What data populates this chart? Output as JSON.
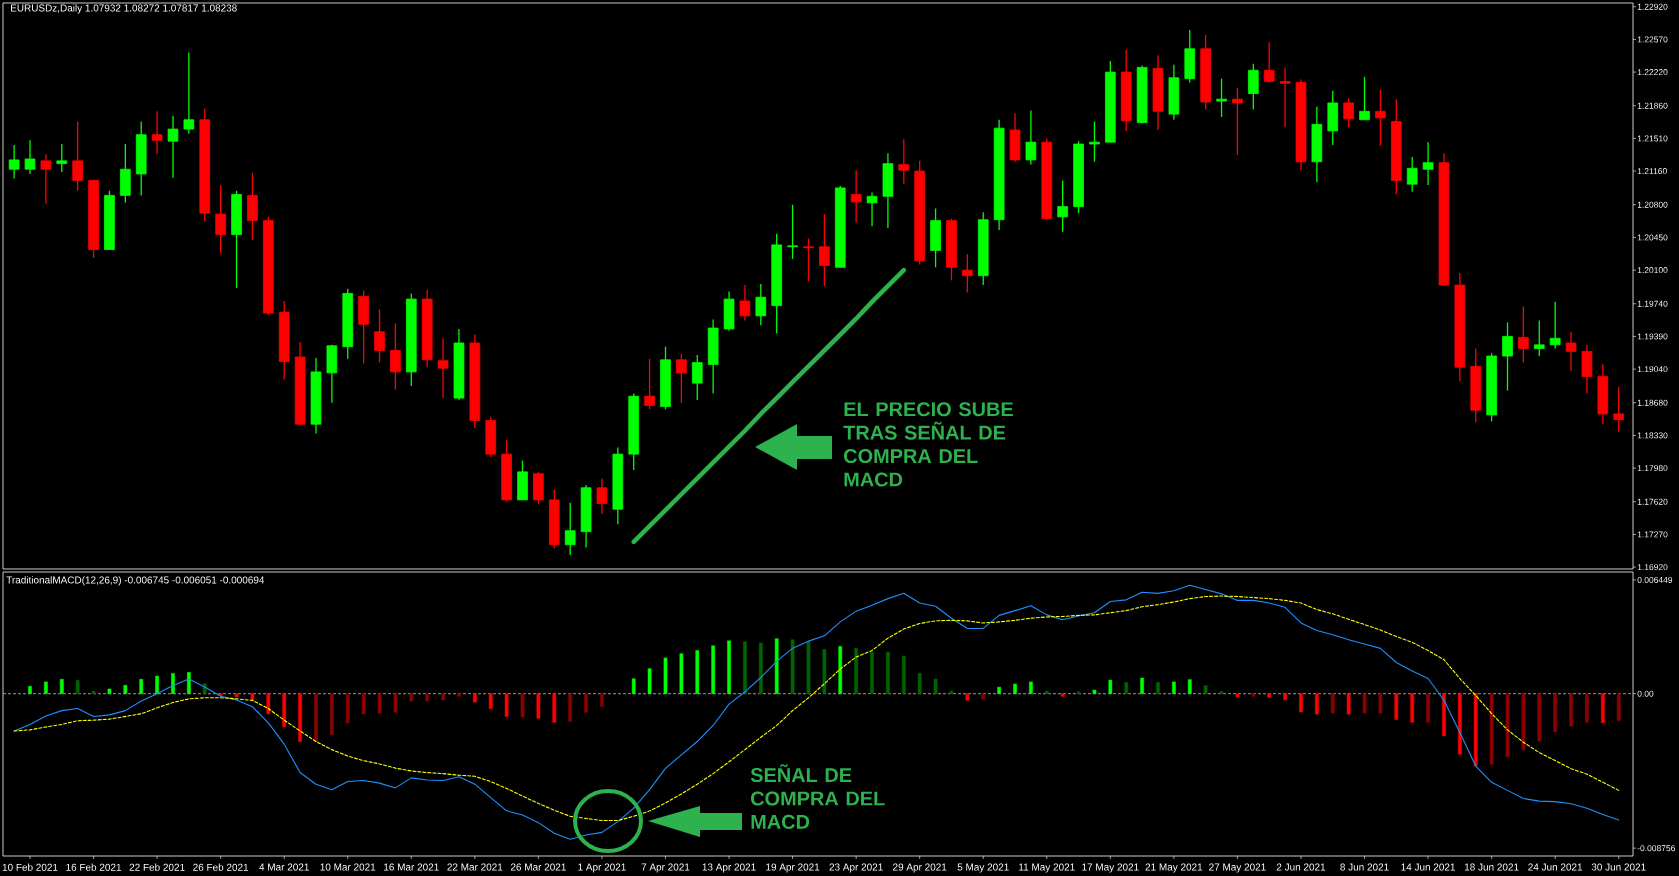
{
  "chart_data": [
    {
      "type": "candlestick",
      "title": "EURUSDz,Daily  1.07932 1.08272 1.07817 1.08238",
      "categories": [
        null,
        null,
        null,
        null,
        null,
        null,
        null,
        null,
        null,
        null,
        null,
        null,
        null,
        null,
        null,
        null,
        null,
        null,
        null,
        null,
        null,
        null,
        null,
        null,
        null,
        null,
        null,
        null,
        null,
        null,
        null,
        null,
        null,
        null,
        null,
        null,
        null,
        null,
        null,
        null,
        null,
        null,
        null,
        null,
        null,
        null,
        null,
        null,
        null,
        null,
        null,
        null,
        null,
        null,
        null,
        null,
        null,
        null,
        null,
        null,
        null,
        null,
        null,
        null,
        null,
        null,
        null,
        null,
        null,
        null,
        null,
        null,
        null,
        null,
        null,
        null,
        null,
        null,
        null,
        null,
        null,
        null,
        null,
        null,
        null,
        null,
        null,
        null,
        null,
        null,
        null,
        null,
        null,
        null,
        null,
        null,
        null,
        null,
        null,
        null,
        null,
        null
      ],
      "ohlc": [
        [
          1.2118,
          1.2144,
          1.2108,
          1.2128
        ],
        [
          1.2118,
          1.2149,
          1.2113,
          1.2129
        ],
        [
          1.2127,
          1.2134,
          1.2081,
          1.2118
        ],
        [
          1.2124,
          1.2145,
          1.2115,
          1.2127
        ],
        [
          1.2127,
          1.2169,
          1.2095,
          1.2106
        ],
        [
          1.2106,
          1.2107,
          1.2023,
          1.2032
        ],
        [
          1.2032,
          1.2095,
          1.2032,
          1.209
        ],
        [
          1.209,
          1.2145,
          1.2082,
          1.2118
        ],
        [
          1.2113,
          1.2169,
          1.209,
          1.2155
        ],
        [
          1.2155,
          1.218,
          1.2134,
          1.2149
        ],
        [
          1.2148,
          1.2175,
          1.2109,
          1.2161
        ],
        [
          1.2161,
          1.2243,
          1.2156,
          1.2171
        ],
        [
          1.2171,
          1.2183,
          1.2062,
          1.2071
        ],
        [
          1.207,
          1.2101,
          1.2028,
          1.2048
        ],
        [
          1.2048,
          1.2095,
          1.1991,
          1.2091
        ],
        [
          1.209,
          1.2114,
          1.2042,
          1.2063
        ],
        [
          1.2063,
          1.2067,
          1.1962,
          1.1964
        ],
        [
          1.1965,
          1.1977,
          1.1893,
          1.1912
        ],
        [
          1.1917,
          1.1933,
          1.1844,
          1.1845
        ],
        [
          1.1845,
          1.1916,
          1.1835,
          1.1901
        ],
        [
          1.19,
          1.193,
          1.1868,
          1.1929
        ],
        [
          1.1928,
          1.199,
          1.1915,
          1.1985
        ],
        [
          1.1982,
          1.1988,
          1.191,
          1.1952
        ],
        [
          1.1944,
          1.1968,
          1.1911,
          1.1924
        ],
        [
          1.1924,
          1.1953,
          1.1882,
          1.1901
        ],
        [
          1.1901,
          1.1985,
          1.1886,
          1.1979
        ],
        [
          1.1979,
          1.1989,
          1.1906,
          1.1914
        ],
        [
          1.1913,
          1.1937,
          1.1873,
          1.1905
        ],
        [
          1.1873,
          1.1947,
          1.1871,
          1.1932
        ],
        [
          1.1932,
          1.1941,
          1.1841,
          1.1849
        ],
        [
          1.1849,
          1.1853,
          1.181,
          1.1813
        ],
        [
          1.1813,
          1.1828,
          1.1762,
          1.1764
        ],
        [
          1.1764,
          1.1806,
          1.1764,
          1.1794
        ],
        [
          1.1792,
          1.1794,
          1.176,
          1.1764
        ],
        [
          1.1764,
          1.1775,
          1.1712,
          1.1716
        ],
        [
          1.1716,
          1.1761,
          1.1705,
          1.1731
        ],
        [
          1.173,
          1.178,
          1.1713,
          1.1777
        ],
        [
          1.1777,
          1.1787,
          1.1749,
          1.176
        ],
        [
          1.1754,
          1.182,
          1.1738,
          1.1813
        ],
        [
          1.1813,
          1.1878,
          1.1796,
          1.1875
        ],
        [
          1.1875,
          1.1915,
          1.1861,
          1.1865
        ],
        [
          1.1864,
          1.1928,
          1.1861,
          1.1914
        ],
        [
          1.1914,
          1.192,
          1.1868,
          1.19
        ],
        [
          1.1889,
          1.1919,
          1.1871,
          1.1911
        ],
        [
          1.1909,
          1.1957,
          1.1878,
          1.1948
        ],
        [
          1.1947,
          1.1987,
          1.1945,
          1.1979
        ],
        [
          1.1977,
          1.1994,
          1.1956,
          1.1961
        ],
        [
          1.1961,
          1.1995,
          1.1951,
          1.1981
        ],
        [
          1.1972,
          1.2049,
          1.1942,
          1.2037
        ],
        [
          1.2035,
          1.208,
          1.2022,
          1.2036
        ],
        [
          1.2035,
          1.2044,
          1.1998,
          1.2034
        ],
        [
          1.2035,
          1.207,
          1.1993,
          1.2015
        ],
        [
          1.2013,
          1.21,
          1.2013,
          1.2098
        ],
        [
          1.2091,
          1.2117,
          1.2061,
          1.2083
        ],
        [
          1.2082,
          1.2093,
          1.2057,
          1.2089
        ],
        [
          1.2089,
          1.2135,
          1.2055,
          1.2124
        ],
        [
          1.2123,
          1.215,
          1.2102,
          1.2117
        ],
        [
          1.2116,
          1.2127,
          1.2016,
          1.202
        ],
        [
          1.2031,
          1.2076,
          1.2013,
          1.2063
        ],
        [
          1.2063,
          1.2065,
          1.1999,
          1.2013
        ],
        [
          1.201,
          1.2027,
          1.1986,
          1.2004
        ],
        [
          1.2004,
          1.2072,
          1.1994,
          1.2064
        ],
        [
          1.2064,
          1.2171,
          1.2053,
          1.2162
        ],
        [
          1.216,
          1.2178,
          1.2126,
          1.2128
        ],
        [
          1.2128,
          1.2181,
          1.2123,
          1.2147
        ],
        [
          1.2147,
          1.2151,
          1.2065,
          1.2065
        ],
        [
          1.2067,
          1.2106,
          1.2051,
          1.2078
        ],
        [
          1.2078,
          1.2148,
          1.2071,
          1.2145
        ],
        [
          1.2145,
          1.2169,
          1.2126,
          1.2147
        ],
        [
          1.2147,
          1.2234,
          1.2147,
          1.2222
        ],
        [
          1.2222,
          1.2246,
          1.2159,
          1.217
        ],
        [
          1.2168,
          1.2229,
          1.2167,
          1.2227
        ],
        [
          1.2226,
          1.224,
          1.216,
          1.218
        ],
        [
          1.2177,
          1.223,
          1.2171,
          1.2216
        ],
        [
          1.2215,
          1.2267,
          1.2211,
          1.2247
        ],
        [
          1.2247,
          1.2262,
          1.2182,
          1.219
        ],
        [
          1.2191,
          1.2215,
          1.2174,
          1.2193
        ],
        [
          1.2193,
          1.2205,
          1.2133,
          1.2189
        ],
        [
          1.2199,
          1.2231,
          1.2182,
          1.2224
        ],
        [
          1.2224,
          1.2254,
          1.2211,
          1.2212
        ],
        [
          1.2212,
          1.2227,
          1.2163,
          1.221
        ],
        [
          1.2211,
          1.2214,
          1.2117,
          1.2126
        ],
        [
          1.2126,
          1.2185,
          1.2104,
          1.2166
        ],
        [
          1.2159,
          1.2202,
          1.2144,
          1.2189
        ],
        [
          1.2189,
          1.2194,
          1.2163,
          1.2172
        ],
        [
          1.2171,
          1.2217,
          1.2171,
          1.218
        ],
        [
          1.218,
          1.2203,
          1.2143,
          1.2173
        ],
        [
          1.2169,
          1.2193,
          1.2091,
          1.2106
        ],
        [
          1.2102,
          1.2131,
          1.2094,
          1.2119
        ],
        [
          1.2118,
          1.2147,
          1.2101,
          1.2125
        ],
        [
          1.2125,
          1.2135,
          1.1993,
          1.1994
        ],
        [
          1.1994,
          1.2007,
          1.1891,
          1.1906
        ],
        [
          1.1907,
          1.1926,
          1.1847,
          1.186
        ],
        [
          1.1855,
          1.1921,
          1.1848,
          1.1918
        ],
        [
          1.1918,
          1.1954,
          1.1881,
          1.1939
        ],
        [
          1.1938,
          1.1971,
          1.1911,
          1.1926
        ],
        [
          1.1926,
          1.1956,
          1.1918,
          1.193
        ],
        [
          1.193,
          1.1976,
          1.1926,
          1.1937
        ],
        [
          1.1932,
          1.1944,
          1.1902,
          1.1923
        ],
        [
          1.1923,
          1.193,
          1.1878,
          1.1896
        ],
        [
          1.1896,
          1.1909,
          1.1845,
          1.1856
        ],
        [
          1.1856,
          1.1885,
          1.1837,
          1.185
        ]
      ],
      "colors": [
        "#00ff00",
        "#00ff00",
        "#ff0000",
        "#00ff00",
        "#ff0000",
        "#ff0000",
        "#00ff00",
        "#00ff00",
        "#00ff00",
        "#ff0000",
        "#00ff00",
        "#00ff00",
        "#ff0000",
        "#ff0000",
        "#00ff00",
        "#ff0000",
        "#ff0000",
        "#ff0000",
        "#ff0000",
        "#00ff00",
        "#00ff00",
        "#00ff00",
        "#ff0000",
        "#ff0000",
        "#ff0000",
        "#00ff00",
        "#ff0000",
        "#ff0000",
        "#00ff00",
        "#ff0000",
        "#ff0000",
        "#ff0000",
        "#00ff00",
        "#ff0000",
        "#ff0000",
        "#00ff00",
        "#00ff00",
        "#ff0000",
        "#00ff00",
        "#00ff00",
        "#ff0000",
        "#00ff00",
        "#ff0000",
        "#00ff00",
        "#00ff00",
        "#00ff00",
        "#ff0000",
        "#00ff00",
        "#00ff00",
        "#00ff00",
        "#ff0000",
        "#ff0000",
        "#00ff00",
        "#ff0000",
        "#00ff00",
        "#00ff00",
        "#ff0000",
        "#ff0000",
        "#00ff00",
        "#ff0000",
        "#ff0000",
        "#00ff00",
        "#00ff00",
        "#ff0000",
        "#00ff00",
        "#ff0000",
        "#00ff00",
        "#00ff00",
        "#00ff00",
        "#00ff00",
        "#ff0000",
        "#00ff00",
        "#ff0000",
        "#00ff00",
        "#00ff00",
        "#ff0000",
        "#00ff00",
        "#ff0000",
        "#00ff00",
        "#ff0000",
        "#ff0000",
        "#ff0000",
        "#00ff00",
        "#00ff00",
        "#ff0000",
        "#00ff00",
        "#ff0000",
        "#ff0000",
        "#00ff00",
        "#00ff00",
        "#ff0000",
        "#ff0000",
        "#ff0000",
        "#00ff00",
        "#00ff00",
        "#ff0000",
        "#00ff00",
        "#00ff00",
        "#ff0000",
        "#ff0000",
        "#ff0000",
        "#ff0000"
      ],
      "ylim": [
        1.169,
        1.2296
      ],
      "yticks": [
        {
          "value": 1.2292,
          "label": "1.22920"
        },
        {
          "value": 1.2257,
          "label": "1.22570"
        },
        {
          "value": 1.2222,
          "label": "1.22220"
        },
        {
          "value": 1.2186,
          "label": "1.21860"
        },
        {
          "value": 1.2151,
          "label": "1.21510"
        },
        {
          "value": 1.2116,
          "label": "1.21160"
        },
        {
          "value": 1.208,
          "label": "1.20800"
        },
        {
          "value": 1.2045,
          "label": "1.20450"
        },
        {
          "value": 1.201,
          "label": "1.20100"
        },
        {
          "value": 1.1974,
          "label": "1.19740"
        },
        {
          "value": 1.1939,
          "label": "1.19390"
        },
        {
          "value": 1.1904,
          "label": "1.19040"
        },
        {
          "value": 1.1868,
          "label": "1.18680"
        },
        {
          "value": 1.1833,
          "label": "1.18330"
        },
        {
          "value": 1.1798,
          "label": "1.17980"
        },
        {
          "value": 1.1762,
          "label": "1.17620"
        },
        {
          "value": 1.1727,
          "label": "1.17270"
        },
        {
          "value": 1.1692,
          "label": "1.16920"
        }
      ],
      "series": [
        {
          "type": "line",
          "color": "#2db24d",
          "values": [
            null,
            null,
            null,
            null,
            null,
            null,
            null,
            null,
            null,
            null,
            null,
            null,
            null,
            null,
            null,
            null,
            null,
            null,
            null,
            null,
            null,
            null,
            null,
            null,
            null,
            null,
            null,
            null,
            null,
            null,
            null,
            null,
            null,
            null,
            null,
            null,
            null,
            null,
            null,
            1.1719,
            1.1736,
            1.1753,
            1.177,
            1.1787,
            1.1804,
            1.1821,
            1.1838,
            1.1856,
            1.1873,
            1.189,
            1.1907,
            1.1924,
            1.1941,
            1.1958,
            1.1976,
            1.1993,
            1.201,
            null,
            null,
            null,
            null,
            null,
            null,
            null,
            null,
            null,
            null,
            null,
            null,
            null,
            null,
            null,
            null,
            null,
            null,
            null,
            null,
            null,
            null,
            null,
            null,
            null,
            null,
            null,
            null,
            null,
            null,
            null,
            null,
            null,
            null,
            null,
            null,
            null,
            null,
            null,
            null,
            null,
            null,
            null,
            null,
            null
          ]
        }
      ],
      "tick_labels": "y",
      "annotations": [
        "EL PRECIO SUBE TRAS SEÑAL DE COMPRA DEL MACD"
      ]
    },
    {
      "type": "bar",
      "title": "TraditionalMACD(12,26,9) -0.006745 -0.006051 -0.000694",
      "categories": [
        null,
        "10 Feb 2021",
        null,
        null,
        null,
        "16 Feb 2021",
        null,
        null,
        null,
        "22 Feb 2021",
        null,
        null,
        null,
        "26 Feb 2021",
        null,
        null,
        null,
        "4 Mar 2021",
        null,
        null,
        null,
        "10 Mar 2021",
        null,
        null,
        null,
        "16 Mar 2021",
        null,
        null,
        null,
        "22 Mar 2021",
        null,
        null,
        null,
        "26 Mar 2021",
        null,
        null,
        null,
        "1 Apr 2021",
        null,
        null,
        null,
        "7 Apr 2021",
        null,
        null,
        null,
        "13 Apr 2021",
        null,
        null,
        null,
        "19 Apr 2021",
        null,
        null,
        null,
        "23 Apr 2021",
        null,
        null,
        null,
        "29 Apr 2021",
        null,
        null,
        null,
        "5 May 2021",
        null,
        null,
        null,
        "11 May 2021",
        null,
        null,
        null,
        "17 May 2021",
        null,
        null,
        null,
        "21 May 2021",
        null,
        null,
        null,
        "27 May 2021",
        null,
        null,
        null,
        "2 Jun 2021",
        null,
        null,
        null,
        "8 Jun 2021",
        null,
        null,
        null,
        "14 Jun 2021",
        null,
        null,
        null,
        "18 Jun 2021",
        null,
        null,
        null,
        "24 Jun 2021",
        null,
        null,
        null,
        "30 Jun 2021"
      ],
      "series": [
        {
          "type": "bar",
          "values": [
            null,
            0.00042,
            0.00067,
            0.00082,
            0.00076,
            0.00015,
            0.00027,
            0.00048,
            0.00082,
            0.001,
            0.00115,
            0.00121,
            0.00057,
            -0.00012,
            -0.00018,
            -0.00039,
            -0.00115,
            -0.00188,
            -0.00272,
            -0.00272,
            -0.00233,
            -0.00166,
            -0.00115,
            -0.0011,
            -0.00106,
            -0.00042,
            -0.00042,
            -0.00036,
            -0.00015,
            -0.00048,
            -0.00085,
            -0.0013,
            -0.00133,
            -0.00139,
            -0.00163,
            -0.00157,
            -0.00106,
            -0.00073,
            null,
            0.00085,
            0.00142,
            0.00203,
            0.00227,
            0.00245,
            0.00272,
            0.003,
            0.00294,
            0.00287,
            0.00312,
            0.00306,
            0.00294,
            0.00251,
            0.00268,
            0.00257,
            0.00236,
            0.00236,
            0.00214,
            0.00116,
            0.00083,
            0.00015,
            -0.00037,
            -0.00031,
            0.00037,
            0.00055,
            0.00067,
            0.00015,
            -0.00015,
            0.0001,
            0.00021,
            0.00077,
            0.00064,
            0.00089,
            0.00064,
            0.00067,
            0.0008,
            0.00046,
            0.00012,
            -0.00018,
            -0.00015,
            -0.00021,
            -0.00034,
            -0.00104,
            -0.00116,
            -0.0011,
            -0.00116,
            -0.0011,
            -0.0011,
            -0.00147,
            -0.00162,
            -0.00162,
            -0.00239,
            -0.00343,
            -0.0041,
            -0.00401,
            -0.00358,
            -0.00318,
            -0.00269,
            -0.00217,
            -0.00184,
            -0.00162,
            -0.00165,
            -0.00153
          ],
          "colors": [
            "#00ff00",
            "#00ff00",
            "#00ff00",
            "#00ff00",
            "#006400",
            "#006400",
            "#00ff00",
            "#00ff00",
            "#00ff00",
            "#00ff00",
            "#00ff00",
            "#00ff00",
            "#006400",
            "#ff0000",
            "#ff0000",
            "#ff0000",
            "#ff0000",
            "#ff0000",
            "#ff0000",
            "#8b0000",
            "#8b0000",
            "#8b0000",
            "#8b0000",
            "#8b0000",
            "#8b0000",
            "#8b0000",
            "#8b0000",
            "#8b0000",
            "#8b0000",
            "#ff0000",
            "#ff0000",
            "#ff0000",
            "#8b0000",
            "#ff0000",
            "#ff0000",
            "#8b0000",
            "#8b0000",
            "#8b0000",
            "#00ff00",
            "#00ff00",
            "#00ff00",
            "#00ff00",
            "#00ff00",
            "#00ff00",
            "#00ff00",
            "#00ff00",
            "#006400",
            "#006400",
            "#00ff00",
            "#006400",
            "#006400",
            "#006400",
            "#00ff00",
            "#006400",
            "#006400",
            "#006400",
            "#006400",
            "#006400",
            "#006400",
            "#006400",
            "#ff0000",
            "#8b0000",
            "#00ff00",
            "#00ff00",
            "#00ff00",
            "#006400",
            "#ff0000",
            "#006400",
            "#00ff00",
            "#00ff00",
            "#006400",
            "#00ff00",
            "#006400",
            "#00ff00",
            "#00ff00",
            "#006400",
            "#006400",
            "#ff0000",
            "#8b0000",
            "#ff0000",
            "#ff0000",
            "#ff0000",
            "#ff0000",
            "#8b0000",
            "#ff0000",
            "#8b0000",
            "#8b0000",
            "#ff0000",
            "#ff0000",
            "#8b0000",
            "#ff0000",
            "#ff0000",
            "#ff0000",
            "#8b0000",
            "#8b0000",
            "#8b0000",
            "#8b0000",
            "#8b0000",
            "#8b0000",
            "#8b0000",
            "#ff0000",
            "#8b0000"
          ]
        },
        {
          "type": "line",
          "color": "#1e90ff",
          "values": [
            -0.00211,
            -0.00174,
            -0.00126,
            -0.00096,
            -0.00084,
            -0.00129,
            -0.0012,
            -0.00096,
            -0.00041,
            0.0,
            0.00047,
            0.00083,
            0.00038,
            -0.00014,
            -0.00035,
            -0.00074,
            -0.00165,
            -0.00286,
            -0.00447,
            -0.00513,
            -0.00544,
            -0.00498,
            -0.00492,
            -0.00507,
            -0.00534,
            -0.00477,
            -0.00489,
            -0.00492,
            -0.00471,
            -0.00513,
            -0.00589,
            -0.00664,
            -0.00688,
            -0.00731,
            -0.00791,
            -0.00825,
            -0.00801,
            -0.00786,
            -0.00725,
            -0.00649,
            -0.00544,
            -0.00423,
            -0.00347,
            -0.00271,
            -0.0018,
            -0.00059,
            0.0001,
            0.00092,
            0.00183,
            0.00258,
            0.00298,
            0.00328,
            0.00407,
            0.00468,
            0.00502,
            0.00539,
            0.00569,
            0.00514,
            0.00496,
            0.00428,
            0.0037,
            0.0037,
            0.00444,
            0.00471,
            0.00499,
            0.00447,
            0.00419,
            0.00441,
            0.00459,
            0.00523,
            0.00532,
            0.00575,
            0.00569,
            0.00584,
            0.00615,
            0.00591,
            0.00566,
            0.00529,
            0.00529,
            0.00514,
            0.0049,
            0.00401,
            0.00358,
            0.00334,
            0.00306,
            0.00282,
            0.00257,
            0.00177,
            0.00129,
            0.00086,
            -0.00037,
            -0.0022,
            -0.0041,
            -0.00502,
            -0.00548,
            -0.00594,
            -0.00609,
            -0.00612,
            -0.00624,
            -0.00649,
            -0.00685,
            -0.00716
          ]
        },
        {
          "type": "line",
          "color": "#ffff00",
          "line_style": "dashed",
          "values": [
            -0.00211,
            -0.00205,
            -0.00189,
            -0.00174,
            -0.00153,
            -0.0015,
            -0.00144,
            -0.00129,
            -0.00114,
            -0.0008,
            -0.0005,
            -0.00029,
            -0.00023,
            -0.00023,
            -0.00029,
            -0.00038,
            -0.00084,
            -0.0015,
            -0.00211,
            -0.00271,
            -0.00317,
            -0.00353,
            -0.0038,
            -0.00398,
            -0.00422,
            -0.00438,
            -0.00447,
            -0.00453,
            -0.00462,
            -0.00468,
            -0.00498,
            -0.00537,
            -0.0058,
            -0.00622,
            -0.00661,
            -0.00695,
            -0.00707,
            -0.00719,
            -0.00719,
            -0.00695,
            -0.00665,
            -0.00619,
            -0.00568,
            -0.00513,
            -0.00453,
            -0.00386,
            -0.00317,
            -0.00247,
            -0.0018,
            -0.00096,
            -0.00023,
            0.00056,
            0.0014,
            0.00208,
            0.00245,
            0.00315,
            0.00367,
            0.00398,
            0.00413,
            0.00416,
            0.00413,
            0.00401,
            0.00407,
            0.00416,
            0.00428,
            0.00435,
            0.00438,
            0.00444,
            0.00447,
            0.00459,
            0.00471,
            0.00493,
            0.00505,
            0.0052,
            0.00539,
            0.00551,
            0.00554,
            0.00551,
            0.00545,
            0.00539,
            0.00529,
            0.00514,
            0.00477,
            0.00453,
            0.00422,
            0.00392,
            0.00361,
            0.00324,
            0.00291,
            0.00245,
            0.00193,
            0.00086,
            -0.0001,
            -0.00113,
            -0.00205,
            -0.00275,
            -0.00334,
            -0.00379,
            -0.00425,
            -0.00456,
            -0.00502,
            -0.00548
          ]
        }
      ],
      "ylim": [
        -0.0092,
        0.0069
      ],
      "yticks": [
        0.006449,
        {
          "value": 0,
          "label": "0.00"
        },
        -0.008756
      ],
      "ref_lines": [
        {
          "axis": "y",
          "value": 0,
          "color": "#c0c0c0",
          "line_style": "dashed"
        }
      ],
      "annotations": [
        "SEÑAL DE COMPRA DEL MACD"
      ]
    }
  ]
}
